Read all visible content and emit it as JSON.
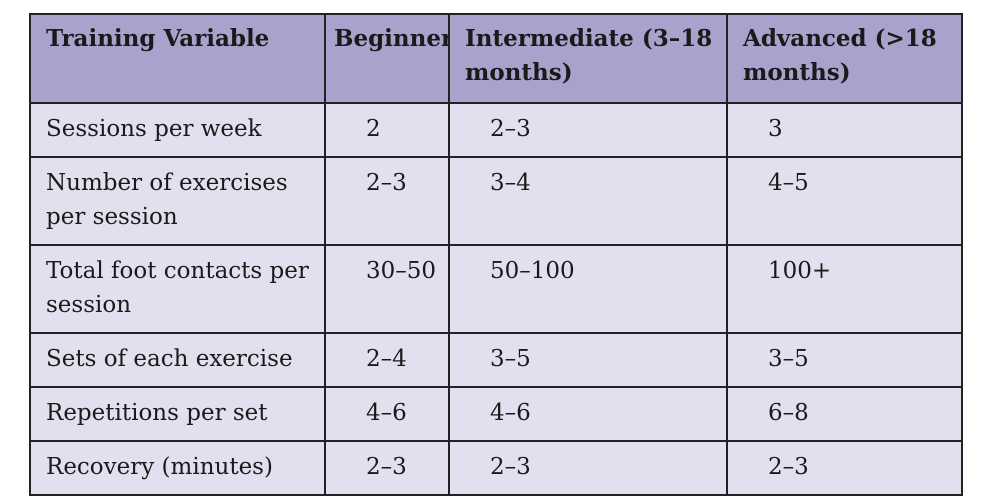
{
  "table": {
    "headers": [
      "Training Variable",
      "Beginner",
      "Intermediate (3–18 months)",
      "Advanced (>18 months)"
    ],
    "rows": [
      [
        "Sessions per week",
        "2",
        "2–3",
        "3"
      ],
      [
        "Number of exercises per session",
        "2–3",
        "3–4",
        "4–5"
      ],
      [
        "Total foot contacts per session",
        "30–50",
        "50–100",
        "100+"
      ],
      [
        "Sets of each exercise",
        "2–4",
        "3–5",
        "3–5"
      ],
      [
        "Repetitions per set",
        "4–6",
        "4–6",
        "6–8"
      ],
      [
        "Recovery (minutes)",
        "2–3",
        "2–3",
        "2–3"
      ]
    ]
  },
  "colors": {
    "header_bg": "#a9a2cc",
    "cell_bg": "#e1e0ef",
    "border": "#222222",
    "caption_label": "#2a3fb0"
  }
}
